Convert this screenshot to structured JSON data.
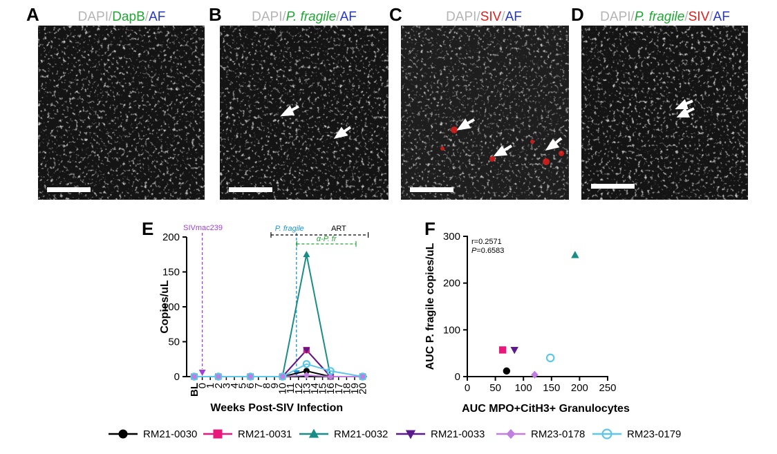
{
  "colors": {
    "dapi": "#b4b4b4",
    "green": "#1ea832",
    "red": "#e0201c",
    "blue": "#2336c8",
    "purple_arrow": "#a23de0",
    "pfragile_blue": "#1a95d8",
    "art_black": "#000000",
    "alpha_green": "#1ea832"
  },
  "panels": {
    "A": {
      "letter": "A",
      "title_parts": [
        {
          "text": "DAPI",
          "color": "dapi",
          "italic": false
        },
        {
          "text": "/",
          "color": "dapi",
          "italic": false
        },
        {
          "text": "DapB",
          "color": "green",
          "italic": false
        },
        {
          "text": "/",
          "color": "dapi",
          "italic": false
        },
        {
          "text": "AF",
          "color": "blue",
          "italic": false
        }
      ]
    },
    "B": {
      "letter": "B",
      "title_parts": [
        {
          "text": "DAPI",
          "color": "dapi",
          "italic": false
        },
        {
          "text": "/",
          "color": "dapi",
          "italic": false
        },
        {
          "text": "P. fragile",
          "color": "green",
          "italic": true
        },
        {
          "text": "/",
          "color": "dapi",
          "italic": false
        },
        {
          "text": "AF",
          "color": "blue",
          "italic": false
        }
      ]
    },
    "C": {
      "letter": "C",
      "title_parts": [
        {
          "text": "DAPI",
          "color": "dapi",
          "italic": false
        },
        {
          "text": "/",
          "color": "dapi",
          "italic": false
        },
        {
          "text": "SIV",
          "color": "red",
          "italic": false
        },
        {
          "text": "/",
          "color": "dapi",
          "italic": false
        },
        {
          "text": "AF",
          "color": "blue",
          "italic": false
        }
      ]
    },
    "D": {
      "letter": "D",
      "title_parts": [
        {
          "text": "DAPI",
          "color": "dapi",
          "italic": false
        },
        {
          "text": "/",
          "color": "dapi",
          "italic": false
        },
        {
          "text": "P. fragile",
          "color": "green",
          "italic": true
        },
        {
          "text": "/",
          "color": "dapi",
          "italic": false
        },
        {
          "text": "SIV",
          "color": "red",
          "italic": false
        },
        {
          "text": "/",
          "color": "dapi",
          "italic": false
        },
        {
          "text": "AF",
          "color": "blue",
          "italic": false
        }
      ]
    },
    "E": {
      "letter": "E"
    },
    "F": {
      "letter": "F"
    }
  },
  "chart_data": [
    {
      "panel": "E",
      "type": "line",
      "xlabel": "Weeks Post-SIV Infection",
      "ylabel": "Copies/uL",
      "ylim": [
        0,
        200
      ],
      "yticks": [
        "0",
        "50",
        "100",
        "150",
        "200"
      ],
      "categories": [
        "BL",
        "0",
        "1",
        "2",
        "3",
        "4",
        "5",
        "6",
        "7",
        "8",
        "9",
        "10",
        "11",
        "12",
        "13",
        "14",
        "15",
        "16",
        "17",
        "18",
        "19",
        "20"
      ],
      "annotations": {
        "siv": {
          "label": "SIVmac239",
          "week": "0",
          "color": "purple_arrow"
        },
        "pfragile": {
          "label": "P. fragile",
          "week": "12",
          "color": "pfragile_blue"
        },
        "art": {
          "label": "ART",
          "from": "9",
          "to": "20"
        },
        "alpha": {
          "label": "α-P. fr",
          "from": "13",
          "to": "19"
        }
      },
      "series": [
        {
          "name": "RM21-0030",
          "color": "#000000",
          "marker": "circle-filled",
          "points": [
            [
              "BL",
              0
            ],
            [
              "2",
              0
            ],
            [
              "6",
              0
            ],
            [
              "10",
              0
            ],
            [
              "13",
              8
            ],
            [
              "16",
              0
            ],
            [
              "20",
              0
            ]
          ]
        },
        {
          "name": "RM21-0031",
          "color": "#e8197a",
          "marker": "square",
          "points": [
            [
              "BL",
              0
            ],
            [
              "2",
              0
            ],
            [
              "6",
              0
            ],
            [
              "10",
              0
            ],
            [
              "13",
              38
            ],
            [
              "16",
              0
            ],
            [
              "20",
              0
            ]
          ]
        },
        {
          "name": "RM21-0032",
          "color": "#1a8c86",
          "marker": "triangle-up",
          "points": [
            [
              "BL",
              0
            ],
            [
              "2",
              0
            ],
            [
              "6",
              0
            ],
            [
              "10",
              0
            ],
            [
              "13",
              175
            ],
            [
              "16",
              0
            ],
            [
              "20",
              0
            ]
          ]
        },
        {
          "name": "RM21-0033",
          "color": "#5a1a8c",
          "marker": "triangle-down",
          "points": [
            [
              "BL",
              0
            ],
            [
              "2",
              0
            ],
            [
              "6",
              0
            ],
            [
              "10",
              0
            ],
            [
              "13",
              38
            ],
            [
              "16",
              0
            ],
            [
              "20",
              0
            ]
          ]
        },
        {
          "name": "RM23-0178",
          "color": "#c07ee0",
          "marker": "diamond",
          "points": [
            [
              "BL",
              0
            ],
            [
              "2",
              0
            ],
            [
              "6",
              0
            ],
            [
              "10",
              0
            ],
            [
              "13",
              2
            ],
            [
              "16",
              0
            ],
            [
              "20",
              0
            ]
          ]
        },
        {
          "name": "RM23-0179",
          "color": "#5ec6e8",
          "marker": "circle-open",
          "points": [
            [
              "BL",
              0
            ],
            [
              "2",
              0
            ],
            [
              "6",
              0
            ],
            [
              "10",
              0
            ],
            [
              "13",
              18
            ],
            [
              "16",
              8
            ],
            [
              "20",
              0
            ]
          ]
        }
      ]
    },
    {
      "panel": "F",
      "type": "scatter",
      "xlabel": "AUC MPO+CitH3+ Granulocytes",
      "ylabel": "AUC P. fragile copies/uL",
      "xlim": [
        0,
        250
      ],
      "ylim": [
        0,
        300
      ],
      "xticks": [
        "0",
        "50",
        "100",
        "150",
        "200",
        "250"
      ],
      "yticks": [
        "0",
        "100",
        "200",
        "300"
      ],
      "stats": {
        "r": "r=0.2571",
        "p_label": "P",
        "p_value": "=0.6583"
      },
      "points": [
        {
          "name": "RM21-0030",
          "x": 70,
          "y": 12
        },
        {
          "name": "RM21-0031",
          "x": 63,
          "y": 57
        },
        {
          "name": "RM21-0032",
          "x": 192,
          "y": 260
        },
        {
          "name": "RM21-0033",
          "x": 84,
          "y": 57
        },
        {
          "name": "RM23-0178",
          "x": 120,
          "y": 4
        },
        {
          "name": "RM23-0179",
          "x": 148,
          "y": 40
        }
      ]
    }
  ],
  "legend": [
    {
      "name": "RM21-0030",
      "color": "#000000",
      "marker": "circle-filled"
    },
    {
      "name": "RM21-0031",
      "color": "#e8197a",
      "marker": "square"
    },
    {
      "name": "RM21-0032",
      "color": "#1a8c86",
      "marker": "triangle-up"
    },
    {
      "name": "RM21-0033",
      "color": "#5a1a8c",
      "marker": "triangle-down"
    },
    {
      "name": "RM23-0178",
      "color": "#c07ee0",
      "marker": "diamond"
    },
    {
      "name": "RM23-0179",
      "color": "#5ec6e8",
      "marker": "circle-open"
    }
  ]
}
